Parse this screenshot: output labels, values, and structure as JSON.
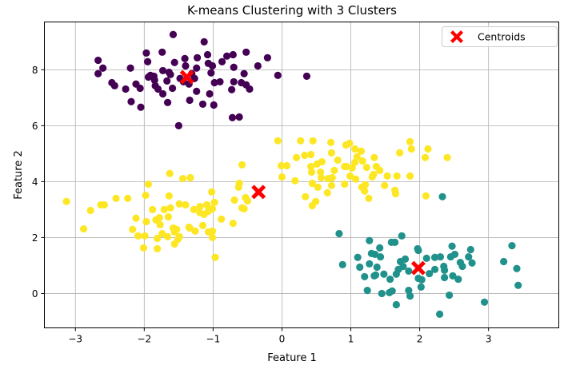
{
  "chart_data": {
    "type": "scatter",
    "title": "K-means Clustering with 3 Clusters",
    "xlabel": "Feature 1",
    "ylabel": "Feature 2",
    "xlim": [
      -3.45,
      4.02
    ],
    "ylim": [
      -1.23,
      9.71
    ],
    "xticks": [
      -3,
      -2,
      -1,
      0,
      1,
      2,
      3
    ],
    "yticks": [
      0,
      2,
      4,
      6,
      8
    ],
    "grid": true,
    "legend": {
      "position": "top-right",
      "entries": [
        "Centroids"
      ]
    },
    "colors": {
      "cluster_0": "#440154",
      "cluster_1": "#21918c",
      "cluster_2": "#fde725",
      "centroid": "#ff0000"
    },
    "series": [
      {
        "name": "cluster_0",
        "color": "#440154",
        "points": [
          [
            -2.67,
            8.34
          ],
          [
            -2.6,
            8.06
          ],
          [
            -2.67,
            7.86
          ],
          [
            -2.2,
            8.06
          ],
          [
            -2.47,
            7.54
          ],
          [
            -2.43,
            7.43
          ],
          [
            -2.27,
            7.31
          ],
          [
            -1.97,
            8.6
          ],
          [
            -1.95,
            8.29
          ],
          [
            -2.19,
            6.86
          ],
          [
            -2.05,
            6.66
          ],
          [
            -1.58,
            9.26
          ],
          [
            -1.74,
            8.63
          ],
          [
            -1.94,
            7.74
          ],
          [
            -1.86,
            7.77
          ],
          [
            -1.85,
            7.63
          ],
          [
            -1.84,
            7.43
          ],
          [
            -1.73,
            7.14
          ],
          [
            -1.66,
            6.83
          ],
          [
            -1.64,
            7.91
          ],
          [
            -1.56,
            8.26
          ],
          [
            -1.48,
            7.69
          ],
          [
            -1.34,
            6.91
          ],
          [
            -1.35,
            7.49
          ],
          [
            -1.41,
            8.4
          ],
          [
            -1.4,
            8.14
          ],
          [
            -1.31,
            7.86
          ],
          [
            -1.24,
            8.06
          ],
          [
            -1.23,
            8.43
          ],
          [
            -1.13,
            9.0
          ],
          [
            -1.08,
            8.54
          ],
          [
            -1.01,
            8.14
          ],
          [
            -1.03,
            7.89
          ],
          [
            -0.98,
            7.54
          ],
          [
            -1.05,
            7.14
          ],
          [
            -1.15,
            6.77
          ],
          [
            -0.99,
            6.74
          ],
          [
            -0.9,
            7.57
          ],
          [
            -0.8,
            8.49
          ],
          [
            -0.71,
            8.54
          ],
          [
            -0.7,
            8.09
          ],
          [
            -0.59,
            7.54
          ],
          [
            -0.7,
            7.57
          ],
          [
            -0.73,
            7.29
          ],
          [
            -0.72,
            6.29
          ],
          [
            -0.62,
            6.31
          ],
          [
            -0.35,
            8.14
          ],
          [
            -0.21,
            8.43
          ],
          [
            -0.06,
            7.8
          ],
          [
            0.36,
            7.77
          ],
          [
            -1.5,
            6.0
          ],
          [
            -0.52,
            8.63
          ],
          [
            -0.55,
            7.86
          ],
          [
            -0.52,
            7.46
          ],
          [
            -0.47,
            7.31
          ],
          [
            -2.12,
            7.49
          ],
          [
            -2.06,
            7.34
          ],
          [
            -1.91,
            7.8
          ],
          [
            -1.73,
            7.97
          ],
          [
            -1.62,
            7.83
          ],
          [
            -1.59,
            7.34
          ],
          [
            -1.43,
            7.57
          ],
          [
            -1.27,
            7.69
          ],
          [
            -1.67,
            7.6
          ],
          [
            -0.87,
            8.29
          ],
          [
            -1.07,
            8.23
          ],
          [
            -1.8,
            7.31
          ],
          [
            -1.24,
            7.23
          ]
        ]
      },
      {
        "name": "cluster_1",
        "color": "#21918c",
        "points": [
          [
            0.83,
            2.14
          ],
          [
            0.88,
            1.03
          ],
          [
            1.27,
            1.89
          ],
          [
            1.42,
            1.63
          ],
          [
            1.59,
            1.83
          ],
          [
            1.64,
            1.83
          ],
          [
            1.74,
            2.06
          ],
          [
            1.1,
            1.29
          ],
          [
            1.13,
            0.94
          ],
          [
            1.2,
            0.6
          ],
          [
            1.27,
            1.06
          ],
          [
            1.3,
            1.43
          ],
          [
            1.35,
            1.4
          ],
          [
            1.43,
            1.31
          ],
          [
            1.38,
            0.94
          ],
          [
            1.34,
            0.63
          ],
          [
            1.36,
            0.66
          ],
          [
            1.48,
            0.69
          ],
          [
            1.57,
            0.51
          ],
          [
            1.24,
            0.11
          ],
          [
            1.45,
            0.0
          ],
          [
            1.56,
            0.03
          ],
          [
            1.6,
            0.09
          ],
          [
            1.66,
            -0.4
          ],
          [
            1.84,
            0.11
          ],
          [
            1.86,
            -0.09
          ],
          [
            1.66,
            0.69
          ],
          [
            1.69,
            0.86
          ],
          [
            1.72,
            1.14
          ],
          [
            1.79,
            1.23
          ],
          [
            1.84,
            0.8
          ],
          [
            1.76,
            0.97
          ],
          [
            1.97,
            1.6
          ],
          [
            1.98,
            1.54
          ],
          [
            1.98,
            0.54
          ],
          [
            2.02,
            0.23
          ],
          [
            2.03,
            0.49
          ],
          [
            2.1,
            1.26
          ],
          [
            2.14,
            0.71
          ],
          [
            2.22,
            1.29
          ],
          [
            2.3,
            1.31
          ],
          [
            2.22,
            0.86
          ],
          [
            2.35,
            0.97
          ],
          [
            2.36,
            0.83
          ],
          [
            2.36,
            0.57
          ],
          [
            2.47,
            1.69
          ],
          [
            2.45,
            1.31
          ],
          [
            2.51,
            1.4
          ],
          [
            2.48,
            0.63
          ],
          [
            2.56,
            0.51
          ],
          [
            2.59,
            1.11
          ],
          [
            2.62,
            0.97
          ],
          [
            2.71,
            1.31
          ],
          [
            2.74,
            1.57
          ],
          [
            2.76,
            1.09
          ],
          [
            2.43,
            -0.06
          ],
          [
            2.29,
            -0.74
          ],
          [
            2.94,
            -0.31
          ],
          [
            3.22,
            1.14
          ],
          [
            3.34,
            1.71
          ],
          [
            3.41,
            0.89
          ],
          [
            3.43,
            0.29
          ],
          [
            2.33,
            3.46
          ]
        ]
      },
      {
        "name": "cluster_2",
        "color": "#fde725",
        "points": [
          [
            -3.13,
            3.29
          ],
          [
            -2.88,
            2.31
          ],
          [
            -2.78,
            2.97
          ],
          [
            -2.63,
            3.17
          ],
          [
            -2.58,
            3.17
          ],
          [
            -2.41,
            3.4
          ],
          [
            -2.24,
            3.4
          ],
          [
            -2.12,
            2.69
          ],
          [
            -2.17,
            2.29
          ],
          [
            -1.97,
            2.57
          ],
          [
            -1.83,
            2.63
          ],
          [
            -1.94,
            3.91
          ],
          [
            -1.98,
            3.51
          ],
          [
            -2.09,
            2.06
          ],
          [
            -1.88,
            3.0
          ],
          [
            -1.99,
            2.06
          ],
          [
            -2.01,
            1.63
          ],
          [
            -1.81,
            1.97
          ],
          [
            -1.78,
            2.71
          ],
          [
            -1.77,
            2.46
          ],
          [
            -1.74,
            2.14
          ],
          [
            -1.71,
            3.0
          ],
          [
            -1.63,
            4.29
          ],
          [
            -1.64,
            3.49
          ],
          [
            -1.62,
            3.06
          ],
          [
            -1.58,
            2.34
          ],
          [
            -1.65,
            2.74
          ],
          [
            -1.49,
            2.03
          ],
          [
            -1.56,
            1.77
          ],
          [
            -1.53,
            2.29
          ],
          [
            -1.4,
            3.17
          ],
          [
            -1.35,
            2.37
          ],
          [
            -1.81,
            1.6
          ],
          [
            -1.49,
            3.2
          ],
          [
            -1.66,
            2.03
          ],
          [
            -1.28,
            3.0
          ],
          [
            -1.26,
            2.23
          ],
          [
            -1.19,
            3.11
          ],
          [
            -1.15,
            2.43
          ],
          [
            -1.13,
            2.83
          ],
          [
            -1.09,
            3.17
          ],
          [
            -1.07,
            2.2
          ],
          [
            -1.01,
            2.23
          ],
          [
            -1.01,
            3.03
          ],
          [
            -1.02,
            3.63
          ],
          [
            -1.01,
            2.0
          ],
          [
            -0.98,
            3.26
          ],
          [
            -0.88,
            2.66
          ],
          [
            -0.71,
            2.51
          ],
          [
            -0.63,
            3.8
          ],
          [
            -0.69,
            3.34
          ],
          [
            -0.58,
            4.6
          ],
          [
            -0.58,
            3.06
          ],
          [
            -0.53,
            3.43
          ],
          [
            -0.62,
            3.94
          ],
          [
            -0.5,
            3.31
          ],
          [
            -1.44,
            4.11
          ],
          [
            -1.51,
            1.94
          ],
          [
            -0.97,
            1.29
          ],
          [
            -1.19,
            2.89
          ],
          [
            -1.07,
            2.94
          ],
          [
            -1.34,
            2.34
          ],
          [
            -1.56,
            2.2
          ],
          [
            -0.55,
            3.03
          ],
          [
            -1.33,
            4.14
          ],
          [
            -0.06,
            5.46
          ],
          [
            0.27,
            5.46
          ],
          [
            0.45,
            5.46
          ],
          [
            0.71,
            5.4
          ],
          [
            0.93,
            5.31
          ],
          [
            0.98,
            5.37
          ],
          [
            1.06,
            5.17
          ],
          [
            1.15,
            5.09
          ],
          [
            1.86,
            5.43
          ],
          [
            1.88,
            5.17
          ],
          [
            2.12,
            5.17
          ],
          [
            2.08,
            4.86
          ],
          [
            2.4,
            4.86
          ],
          [
            1.71,
            5.03
          ],
          [
            1.34,
            4.86
          ],
          [
            1.09,
            4.89
          ],
          [
            0.72,
            5.03
          ],
          [
            0.42,
            4.97
          ],
          [
            0.33,
            4.94
          ],
          [
            0.21,
            4.86
          ],
          [
            -0.01,
            4.57
          ],
          [
            0.07,
            4.57
          ],
          [
            0.0,
            4.17
          ],
          [
            0.19,
            4.03
          ],
          [
            0.42,
            4.54
          ],
          [
            0.51,
            4.63
          ],
          [
            0.58,
            4.71
          ],
          [
            0.81,
            4.77
          ],
          [
            1.06,
            4.69
          ],
          [
            1.17,
            4.74
          ],
          [
            1.23,
            4.51
          ],
          [
            1.37,
            4.54
          ],
          [
            1.42,
            4.4
          ],
          [
            1.31,
            4.17
          ],
          [
            1.53,
            4.2
          ],
          [
            1.67,
            4.2
          ],
          [
            1.86,
            4.2
          ],
          [
            0.91,
            4.54
          ],
          [
            0.94,
            4.54
          ],
          [
            1.02,
            4.49
          ],
          [
            0.76,
            4.4
          ],
          [
            0.56,
            4.34
          ],
          [
            0.43,
            4.34
          ],
          [
            0.57,
            4.14
          ],
          [
            0.67,
            4.11
          ],
          [
            0.73,
            4.14
          ],
          [
            0.99,
            4.2
          ],
          [
            1.07,
            4.09
          ],
          [
            0.91,
            3.91
          ],
          [
            0.72,
            3.86
          ],
          [
            0.52,
            3.8
          ],
          [
            0.44,
            3.94
          ],
          [
            1.16,
            3.8
          ],
          [
            1.21,
            3.89
          ],
          [
            1.2,
            3.66
          ],
          [
            1.26,
            3.4
          ],
          [
            1.49,
            3.86
          ],
          [
            1.64,
            3.69
          ],
          [
            1.65,
            3.57
          ],
          [
            2.09,
            3.49
          ],
          [
            0.66,
            3.6
          ],
          [
            0.34,
            3.46
          ],
          [
            0.49,
            3.29
          ],
          [
            0.44,
            3.14
          ],
          [
            1.33,
            4.26
          ]
        ]
      }
    ],
    "centroids": [
      [
        -1.38,
        7.74
      ],
      [
        -0.34,
        3.63
      ],
      [
        1.98,
        0.91
      ]
    ]
  }
}
